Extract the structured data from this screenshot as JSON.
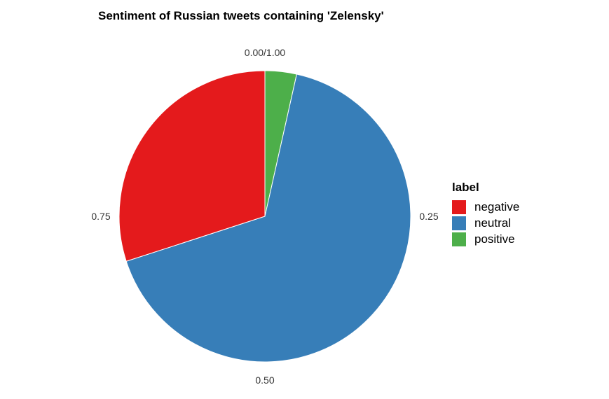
{
  "chart_data": {
    "type": "pie",
    "title": "Sentiment of Russian tweets containing 'Zelensky'",
    "legend_title": "label",
    "legend_position": "right",
    "slices": [
      {
        "label": "negative",
        "value": 0.3,
        "color": "#E41A1C"
      },
      {
        "label": "neutral",
        "value": 0.665,
        "color": "#377EB8"
      },
      {
        "label": "positive",
        "value": 0.035,
        "color": "#4DAF4A"
      }
    ],
    "tick_labels": [
      {
        "value": 0.0,
        "text": "0.00/1.00"
      },
      {
        "value": 0.25,
        "text": "0.25"
      },
      {
        "value": 0.5,
        "text": "0.50"
      },
      {
        "value": 0.75,
        "text": "0.75"
      }
    ]
  }
}
